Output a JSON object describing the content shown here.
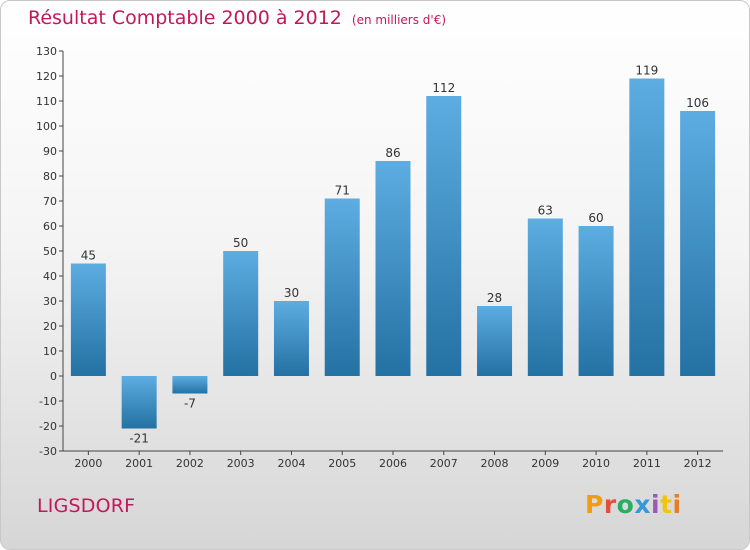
{
  "header": {
    "title": "Résultat Comptable 2000 à 2012",
    "subtitle": "(en milliers d'€)"
  },
  "footer": {
    "commune": "LIGSDORF",
    "logo_text": "Proxiti"
  },
  "colors": {
    "title": "#c2185b",
    "bar_top": "#5dade2",
    "bar_bottom": "#2471a3",
    "logo": [
      "#f39c12",
      "#e74c3c",
      "#27ae60",
      "#3498db",
      "#9b59b6",
      "#f1c40f",
      "#e67e22"
    ]
  },
  "chart_data": {
    "type": "bar",
    "title": "Résultat Comptable 2000 à 2012",
    "subtitle": "(en milliers d'€)",
    "xlabel": "",
    "ylabel": "",
    "categories": [
      "2000",
      "2001",
      "2002",
      "2003",
      "2004",
      "2005",
      "2006",
      "2007",
      "2008",
      "2009",
      "2010",
      "2011",
      "2012"
    ],
    "values": [
      45,
      -21,
      -7,
      50,
      30,
      71,
      86,
      112,
      28,
      63,
      60,
      119,
      106
    ],
    "ylim": [
      -30,
      130
    ],
    "ytick_step": 10,
    "grid": false
  }
}
